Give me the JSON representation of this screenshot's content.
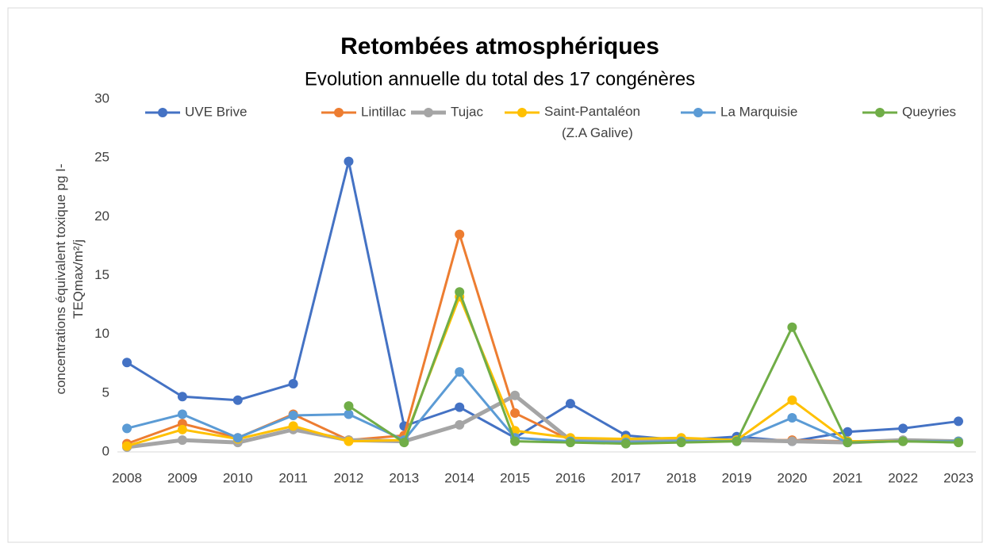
{
  "chart_data": {
    "type": "line",
    "title": "Retombées atmosphériques",
    "subtitle": "Evolution annuelle du total des 17 congénères",
    "y_label": "concentrations équivalent toxique pg I-TEQmax/m²/j",
    "categories": [
      "2008",
      "2009",
      "2010",
      "2011",
      "2012",
      "2013",
      "2014",
      "2015",
      "2016",
      "2017",
      "2018",
      "2019",
      "2020",
      "2021",
      "2022",
      "2023"
    ],
    "ylim": [
      0,
      30
    ],
    "yticks": [
      0,
      5,
      10,
      15,
      20,
      25,
      30
    ],
    "grid": false,
    "legend": "top",
    "series": [
      {
        "name": "UVE Brive",
        "color": "#4472c4",
        "values": [
          7.6,
          4.7,
          4.4,
          5.8,
          24.7,
          2.2,
          3.8,
          1.2,
          4.1,
          1.4,
          1.0,
          1.3,
          0.9,
          1.7,
          2.0,
          2.6
        ]
      },
      {
        "name": "Lintillac",
        "color": "#ed7d31",
        "values": [
          0.7,
          2.4,
          1.2,
          3.2,
          1.0,
          1.4,
          18.5,
          3.3,
          1.0,
          1.0,
          1.0,
          1.0,
          1.0,
          0.9,
          0.9,
          0.9
        ]
      },
      {
        "name": "Tujac",
        "color": "#a5a5a5",
        "values": [
          0.4,
          1.0,
          0.8,
          1.9,
          1.0,
          0.9,
          2.3,
          4.8,
          1.0,
          0.9,
          0.9,
          1.0,
          0.9,
          0.8,
          1.0,
          0.9
        ]
      },
      {
        "name": "Saint-Pantaléon (Z.A Galive)",
        "color": "#ffc000",
        "values": [
          0.5,
          1.9,
          1.1,
          2.2,
          0.9,
          1.0,
          13.2,
          1.8,
          1.2,
          1.1,
          1.2,
          1.0,
          4.4,
          0.9,
          0.9,
          0.9
        ]
      },
      {
        "name": "La Marquisie",
        "color": "#5b9bd5",
        "values": [
          2.0,
          3.2,
          1.2,
          3.1,
          3.2,
          1.0,
          6.8,
          1.2,
          0.9,
          0.8,
          0.9,
          0.9,
          2.9,
          0.8,
          0.9,
          0.9
        ]
      },
      {
        "name": "Queyries",
        "color": "#70ad47",
        "values": [
          null,
          null,
          null,
          null,
          3.9,
          0.8,
          13.6,
          0.9,
          0.8,
          0.7,
          0.8,
          0.9,
          10.6,
          0.8,
          0.9,
          0.8
        ]
      }
    ]
  }
}
